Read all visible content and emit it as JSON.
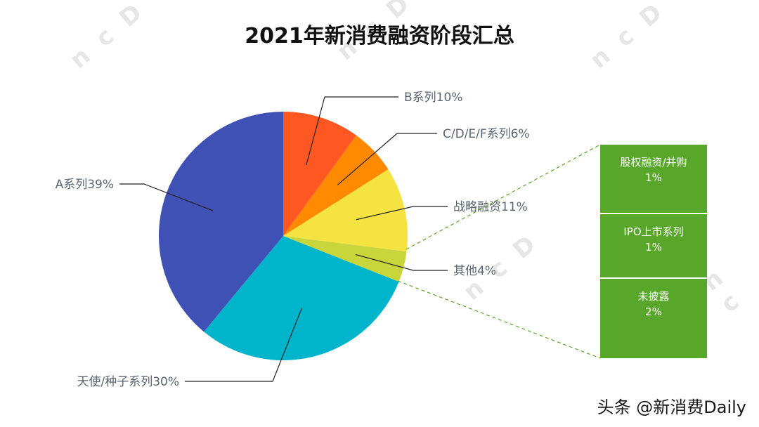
{
  "title": "2021年新消费融资阶段汇总",
  "chart_data": {
    "type": "pie",
    "title": "2021年新消费融资阶段汇总",
    "slices": [
      {
        "label": "B系列10%",
        "value": 10,
        "color": "#ff5722"
      },
      {
        "label": "C/D/E/F系列6%",
        "value": 6,
        "color": "#ff8a00"
      },
      {
        "label": "战略融资11%",
        "value": 11,
        "color": "#f5e342"
      },
      {
        "label": "其他4%",
        "value": 4,
        "color": "#c8d63c"
      },
      {
        "label": "天使/种子系列30%",
        "value": 30,
        "color": "#00b4cc"
      },
      {
        "label": "A系列39%",
        "value": 39,
        "color": "#3f51b5"
      }
    ],
    "breakdown": {
      "of": "其他4%",
      "color": "#58a72a",
      "items": [
        {
          "name": "股权融资/并购",
          "percent": "1%"
        },
        {
          "name": "IPO上市系列",
          "percent": "1%"
        },
        {
          "name": "未披露",
          "percent": "2%"
        }
      ]
    }
  },
  "watermark": "头条 @新消费Daily",
  "logo_text": "ncD"
}
